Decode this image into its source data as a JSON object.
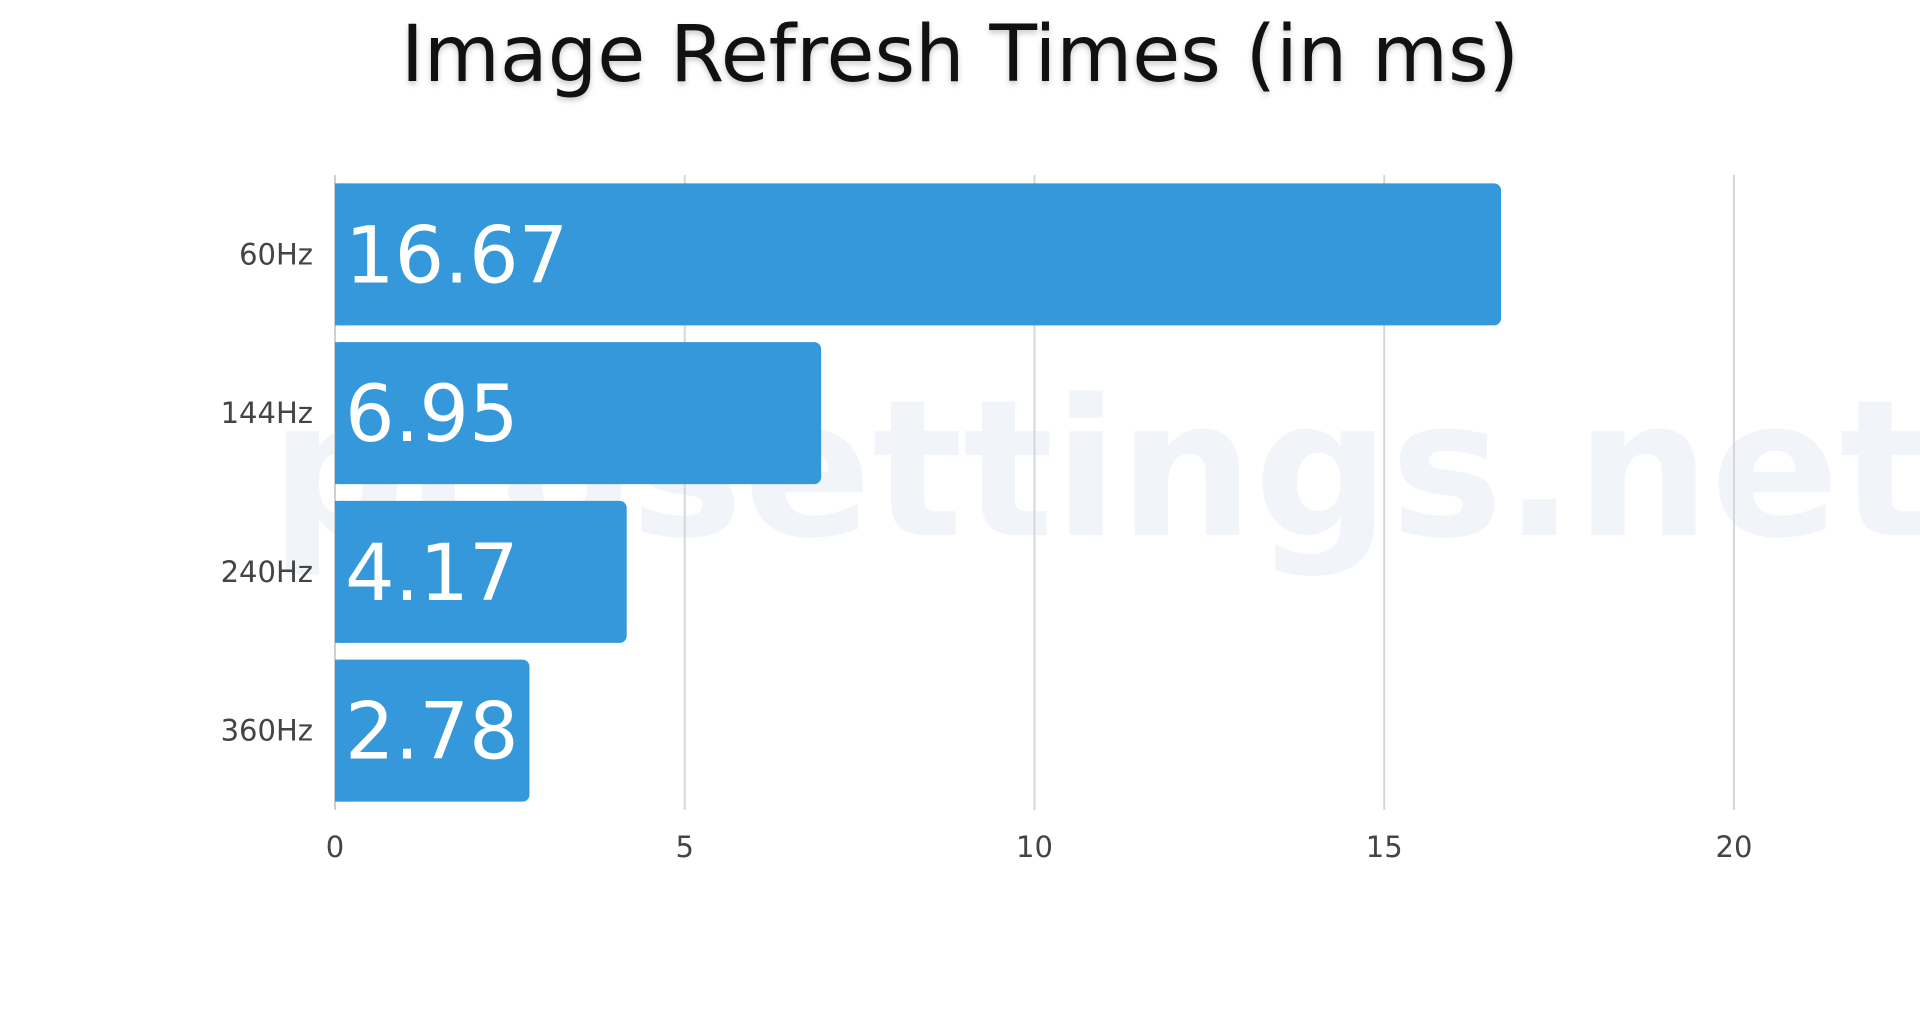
{
  "chart_data": {
    "type": "bar",
    "orientation": "horizontal",
    "title": "Image Refresh Times (in ms)",
    "xlabel": "",
    "ylabel": "",
    "categories": [
      "60Hz",
      "144Hz",
      "240Hz",
      "360Hz"
    ],
    "values": [
      16.67,
      6.95,
      4.17,
      2.78
    ],
    "value_labels": [
      "16.67",
      "6.95",
      "4.17",
      "2.78"
    ],
    "xlim": [
      0,
      20
    ],
    "xticks": [
      0,
      5,
      10,
      15,
      20
    ],
    "grid": "vertical",
    "legend": "none",
    "bar_color": "#3598db",
    "grid_color": "#d7d7d7"
  },
  "watermark": {
    "text": "prosettings.net"
  }
}
